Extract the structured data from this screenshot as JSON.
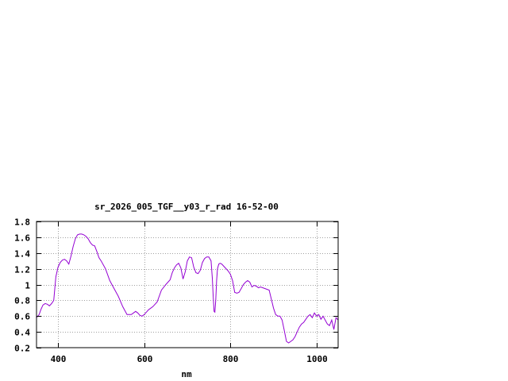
{
  "chart_data": {
    "type": "line",
    "title": "sr_2026_005_TGF__y03_r_rad 16-52-00",
    "xlabel": "nm",
    "ylabel": "",
    "xlim": [
      350,
      1050
    ],
    "ylim": [
      0.2,
      1.8
    ],
    "xticks": [
      400,
      600,
      800,
      1000
    ],
    "yticks": [
      0.2,
      0.4,
      0.6,
      0.8,
      1,
      1.2,
      1.4,
      1.6,
      1.8
    ],
    "grid": true,
    "line_color": "#9400d3",
    "series": [
      {
        "x": [
          350,
          356,
          360,
          365,
          370,
          375,
          380,
          385,
          390,
          395,
          400,
          405,
          410,
          415,
          420,
          425,
          430,
          435,
          440,
          445,
          450,
          455,
          460,
          465,
          470,
          475,
          480,
          485,
          490,
          495,
          500,
          510,
          520,
          530,
          540,
          550,
          560,
          570,
          575,
          580,
          585,
          590,
          595,
          600,
          605,
          610,
          620,
          630,
          640,
          650,
          660,
          665,
          670,
          675,
          680,
          685,
          690,
          695,
          700,
          705,
          710,
          715,
          720,
          725,
          730,
          735,
          740,
          745,
          750,
          755,
          758,
          760,
          762,
          764,
          766,
          768,
          770,
          773,
          776,
          780,
          785,
          790,
          795,
          800,
          805,
          810,
          815,
          820,
          825,
          830,
          835,
          840,
          845,
          850,
          855,
          860,
          865,
          870,
          880,
          890,
          900,
          905,
          910,
          915,
          920,
          925,
          930,
          935,
          940,
          945,
          950,
          955,
          960,
          965,
          970,
          975,
          980,
          985,
          990,
          995,
          1000,
          1005,
          1010,
          1015,
          1020,
          1025,
          1030,
          1035,
          1040,
          1045,
          1050
        ],
        "y": [
          0.58,
          0.62,
          0.68,
          0.74,
          0.76,
          0.75,
          0.73,
          0.76,
          0.8,
          1.1,
          1.22,
          1.28,
          1.31,
          1.32,
          1.3,
          1.26,
          1.36,
          1.48,
          1.58,
          1.63,
          1.64,
          1.64,
          1.63,
          1.61,
          1.58,
          1.53,
          1.5,
          1.49,
          1.42,
          1.34,
          1.3,
          1.2,
          1.05,
          0.95,
          0.85,
          0.72,
          0.62,
          0.62,
          0.64,
          0.66,
          0.64,
          0.61,
          0.6,
          0.62,
          0.65,
          0.68,
          0.72,
          0.78,
          0.93,
          1.0,
          1.06,
          1.15,
          1.21,
          1.25,
          1.27,
          1.21,
          1.07,
          1.16,
          1.3,
          1.35,
          1.34,
          1.22,
          1.15,
          1.14,
          1.18,
          1.28,
          1.33,
          1.35,
          1.35,
          1.3,
          1.08,
          0.85,
          0.66,
          0.65,
          0.8,
          1.05,
          1.2,
          1.26,
          1.27,
          1.26,
          1.23,
          1.2,
          1.17,
          1.13,
          1.05,
          0.9,
          0.89,
          0.9,
          0.95,
          1.0,
          1.03,
          1.05,
          1.03,
          0.97,
          0.99,
          0.98,
          0.96,
          0.97,
          0.95,
          0.93,
          0.7,
          0.62,
          0.6,
          0.6,
          0.55,
          0.42,
          0.28,
          0.26,
          0.28,
          0.3,
          0.34,
          0.4,
          0.46,
          0.5,
          0.52,
          0.56,
          0.6,
          0.62,
          0.58,
          0.64,
          0.6,
          0.62,
          0.56,
          0.6,
          0.55,
          0.5,
          0.48,
          0.55,
          0.43,
          0.58,
          0.55
        ]
      }
    ]
  }
}
